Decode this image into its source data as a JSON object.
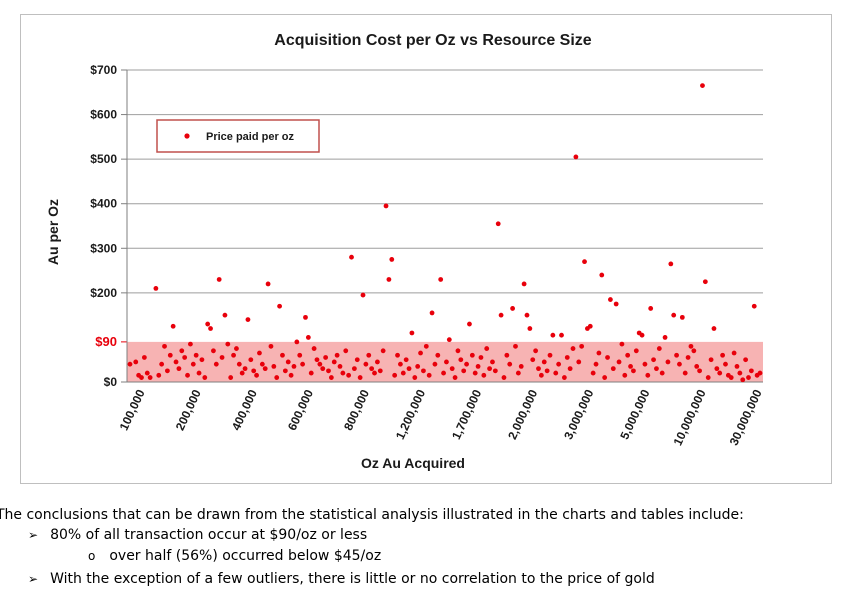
{
  "chart_data": {
    "type": "scatter",
    "title": "Acquisition Cost per Oz vs Resource Size",
    "xlabel": "Oz Au Acquired",
    "ylabel": "Au per Oz",
    "x_scale": "categorical-order (ranked by ounces acquired)",
    "x_tick_labels": [
      "100,000",
      "200,000",
      "400,000",
      "600,000",
      "800,000",
      "1,200,000",
      "1,700,000",
      "2,000,000",
      "3,000,000",
      "5,000,000",
      "10,000,000",
      "30,000,000"
    ],
    "y_tick_labels": [
      "$0",
      "$90",
      "$200",
      "$300",
      "$400",
      "$500",
      "$600",
      "$700"
    ],
    "ylim": [
      0,
      700
    ],
    "grid": "horizontal",
    "legend": {
      "position": "upper-left",
      "entries": [
        "Price paid per oz"
      ]
    },
    "band": {
      "from": 0,
      "to": 90,
      "color": "#f4a7a7"
    },
    "colors": {
      "points": "#e8000b",
      "band": "#f7b3b3",
      "legend_border": "#c0504d",
      "axis_90": "#e8000b"
    },
    "series": [
      {
        "name": "Price paid per oz",
        "points": [
          [
            0,
            40
          ],
          [
            2,
            45
          ],
          [
            3,
            15
          ],
          [
            4,
            10
          ],
          [
            5,
            55
          ],
          [
            6,
            20
          ],
          [
            7,
            10
          ],
          [
            9,
            210
          ],
          [
            10,
            15
          ],
          [
            11,
            40
          ],
          [
            12,
            80
          ],
          [
            13,
            25
          ],
          [
            14,
            60
          ],
          [
            15,
            125
          ],
          [
            16,
            45
          ],
          [
            17,
            30
          ],
          [
            18,
            70
          ],
          [
            19,
            55
          ],
          [
            20,
            15
          ],
          [
            21,
            85
          ],
          [
            22,
            40
          ],
          [
            23,
            60
          ],
          [
            24,
            20
          ],
          [
            25,
            50
          ],
          [
            26,
            10
          ],
          [
            27,
            130
          ],
          [
            28,
            120
          ],
          [
            29,
            70
          ],
          [
            30,
            40
          ],
          [
            31,
            230
          ],
          [
            32,
            55
          ],
          [
            33,
            150
          ],
          [
            34,
            85
          ],
          [
            35,
            10
          ],
          [
            36,
            60
          ],
          [
            37,
            75
          ],
          [
            38,
            40
          ],
          [
            39,
            20
          ],
          [
            40,
            30
          ],
          [
            41,
            140
          ],
          [
            42,
            50
          ],
          [
            43,
            25
          ],
          [
            44,
            15
          ],
          [
            45,
            65
          ],
          [
            46,
            40
          ],
          [
            47,
            30
          ],
          [
            48,
            220
          ],
          [
            49,
            80
          ],
          [
            50,
            35
          ],
          [
            51,
            10
          ],
          [
            52,
            170
          ],
          [
            53,
            60
          ],
          [
            54,
            25
          ],
          [
            55,
            45
          ],
          [
            56,
            15
          ],
          [
            57,
            35
          ],
          [
            58,
            90
          ],
          [
            59,
            60
          ],
          [
            60,
            40
          ],
          [
            61,
            145
          ],
          [
            62,
            100
          ],
          [
            63,
            20
          ],
          [
            64,
            75
          ],
          [
            65,
            50
          ],
          [
            66,
            40
          ],
          [
            67,
            30
          ],
          [
            68,
            55
          ],
          [
            69,
            25
          ],
          [
            70,
            10
          ],
          [
            71,
            45
          ],
          [
            72,
            60
          ],
          [
            73,
            35
          ],
          [
            74,
            20
          ],
          [
            75,
            70
          ],
          [
            76,
            15
          ],
          [
            77,
            280
          ],
          [
            78,
            30
          ],
          [
            79,
            50
          ],
          [
            80,
            10
          ],
          [
            81,
            195
          ],
          [
            82,
            40
          ],
          [
            83,
            60
          ],
          [
            84,
            30
          ],
          [
            85,
            20
          ],
          [
            86,
            45
          ],
          [
            87,
            25
          ],
          [
            88,
            70
          ],
          [
            89,
            395
          ],
          [
            90,
            230
          ],
          [
            91,
            275
          ],
          [
            92,
            15
          ],
          [
            93,
            60
          ],
          [
            94,
            40
          ],
          [
            95,
            20
          ],
          [
            96,
            50
          ],
          [
            97,
            30
          ],
          [
            98,
            110
          ],
          [
            99,
            10
          ],
          [
            100,
            35
          ],
          [
            101,
            65
          ],
          [
            102,
            25
          ],
          [
            103,
            80
          ],
          [
            104,
            15
          ],
          [
            105,
            155
          ],
          [
            106,
            40
          ],
          [
            107,
            60
          ],
          [
            108,
            230
          ],
          [
            109,
            20
          ],
          [
            110,
            45
          ],
          [
            111,
            95
          ],
          [
            112,
            30
          ],
          [
            113,
            10
          ],
          [
            114,
            70
          ],
          [
            115,
            50
          ],
          [
            116,
            25
          ],
          [
            117,
            40
          ],
          [
            118,
            130
          ],
          [
            119,
            60
          ],
          [
            120,
            20
          ],
          [
            121,
            35
          ],
          [
            122,
            55
          ],
          [
            123,
            15
          ],
          [
            124,
            75
          ],
          [
            125,
            30
          ],
          [
            126,
            45
          ],
          [
            127,
            25
          ],
          [
            128,
            355
          ],
          [
            129,
            150
          ],
          [
            130,
            10
          ],
          [
            131,
            60
          ],
          [
            132,
            40
          ],
          [
            133,
            165
          ],
          [
            134,
            80
          ],
          [
            135,
            20
          ],
          [
            136,
            35
          ],
          [
            137,
            220
          ],
          [
            138,
            150
          ],
          [
            139,
            120
          ],
          [
            140,
            50
          ],
          [
            141,
            70
          ],
          [
            142,
            30
          ],
          [
            143,
            15
          ],
          [
            144,
            45
          ],
          [
            145,
            25
          ],
          [
            146,
            60
          ],
          [
            147,
            105
          ],
          [
            148,
            20
          ],
          [
            149,
            40
          ],
          [
            150,
            105
          ],
          [
            151,
            10
          ],
          [
            152,
            55
          ],
          [
            153,
            30
          ],
          [
            154,
            75
          ],
          [
            155,
            505
          ],
          [
            156,
            45
          ],
          [
            157,
            80
          ],
          [
            158,
            270
          ],
          [
            159,
            120
          ],
          [
            160,
            125
          ],
          [
            161,
            20
          ],
          [
            162,
            40
          ],
          [
            163,
            65
          ],
          [
            164,
            240
          ],
          [
            165,
            10
          ],
          [
            166,
            55
          ],
          [
            167,
            185
          ],
          [
            168,
            30
          ],
          [
            169,
            175
          ],
          [
            170,
            45
          ],
          [
            171,
            85
          ],
          [
            172,
            15
          ],
          [
            173,
            60
          ],
          [
            174,
            35
          ],
          [
            175,
            25
          ],
          [
            176,
            70
          ],
          [
            177,
            110
          ],
          [
            178,
            105
          ],
          [
            179,
            40
          ],
          [
            180,
            15
          ],
          [
            181,
            165
          ],
          [
            182,
            50
          ],
          [
            183,
            30
          ],
          [
            184,
            75
          ],
          [
            185,
            20
          ],
          [
            186,
            100
          ],
          [
            187,
            45
          ],
          [
            188,
            265
          ],
          [
            189,
            150
          ],
          [
            190,
            60
          ],
          [
            191,
            40
          ],
          [
            192,
            145
          ],
          [
            193,
            20
          ],
          [
            194,
            55
          ],
          [
            195,
            80
          ],
          [
            196,
            70
          ],
          [
            197,
            35
          ],
          [
            198,
            25
          ],
          [
            199,
            665
          ],
          [
            200,
            225
          ],
          [
            201,
            10
          ],
          [
            202,
            50
          ],
          [
            203,
            120
          ],
          [
            204,
            30
          ],
          [
            205,
            20
          ],
          [
            206,
            60
          ],
          [
            207,
            40
          ],
          [
            208,
            15
          ],
          [
            209,
            10
          ],
          [
            210,
            65
          ],
          [
            211,
            35
          ],
          [
            212,
            20
          ],
          [
            213,
            5
          ],
          [
            214,
            50
          ],
          [
            215,
            10
          ],
          [
            216,
            25
          ],
          [
            217,
            170
          ],
          [
            218,
            15
          ],
          [
            219,
            20
          ]
        ]
      }
    ]
  },
  "notes": {
    "intro": "The conclusions that can be drawn from the statistical analysis illustrated in the charts and tables include:",
    "bullet_1": "80% of all transaction occur at $90/oz or less",
    "bullet_1_sub": "over half (56%) occurred below $45/oz",
    "bullet_2": "With the exception of a few outliers, there is little or no correlation to the price of gold",
    "arrow_glyph": "➢",
    "circle_glyph": "o"
  }
}
